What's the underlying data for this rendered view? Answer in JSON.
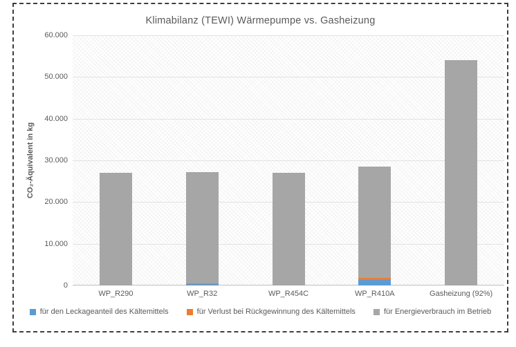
{
  "chart_data": {
    "type": "bar",
    "stacked": true,
    "title": "Klimabilanz (TEWI) Wärmepumpe vs. Gasheizung",
    "xlabel": "",
    "ylabel": "CO₂-Äquivalent in kg",
    "categories": [
      "WP_R290",
      "WP_R32",
      "WP_R454C",
      "WP_R410A",
      "Gasheizung (92%)"
    ],
    "series": [
      {
        "name": "für den Leckageanteil des Kältemittels",
        "color": "#5B9BD5",
        "values": [
          0,
          350,
          0,
          1300,
          0
        ]
      },
      {
        "name": "für Verlust bei Rückgewinnung des Kältemittels",
        "color": "#ED7D31",
        "values": [
          0,
          170,
          0,
          420,
          0
        ]
      },
      {
        "name": "für Energieverbrauch im Betrieb",
        "color": "#A6A6A6",
        "values": [
          27000,
          26700,
          27000,
          26700,
          54000
        ]
      }
    ],
    "totals": [
      27000,
      27220,
      27000,
      28420,
      54000
    ],
    "ylim": [
      0,
      60000
    ],
    "ytick_step": 10000,
    "ytick_labels": [
      "0",
      "10.000",
      "20.000",
      "30.000",
      "40.000",
      "50.000",
      "60.000"
    ],
    "grid": true,
    "legend_position": "bottom",
    "plot_background": "diagonal-hatch",
    "text_color": "#595959",
    "gridline_color": "#e2e2e2"
  }
}
